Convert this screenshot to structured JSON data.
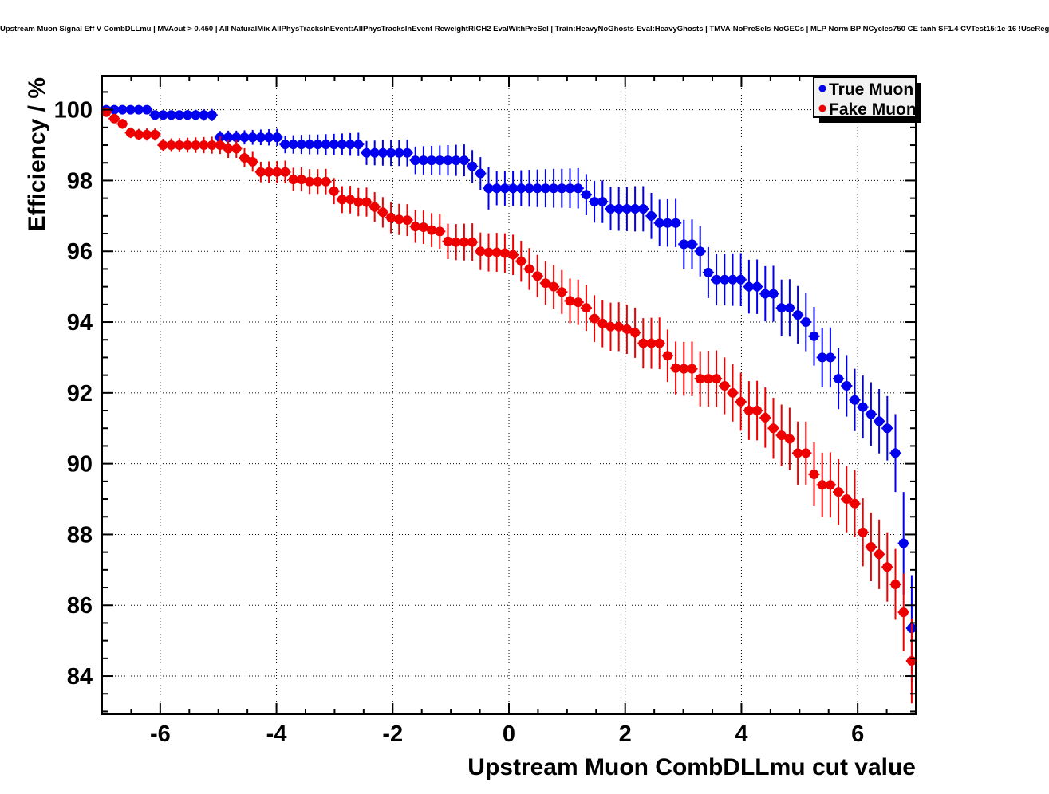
{
  "title": "Upstream Muon Signal Eff V CombDLLmu | MVAout > 0.450 | All NaturalMix AllPhysTracksInEvent:AllPhysTracksInEvent ReweightRICH2 EvalWithPreSel | Train:HeavyNoGhosts-Eval:HeavyGhosts | TMVA-NoPreSels-NoGECs | MLP Norm BP NCycles750 CE tanh SF1.4 CVTest15:1e-16 !UseReg",
  "colors": {
    "true_muon": "#0000ee",
    "fake_muon": "#ee0000",
    "frame": "#000000",
    "grid": "#000000",
    "legend_bg": "#f2f2f2",
    "legend_shadow": "#000000",
    "background": "#ffffff"
  },
  "chart_data": {
    "type": "scatter",
    "title": "Upstream Muon Signal Eff V CombDLLmu | MVAout > 0.450 | All NaturalMix AllPhysTracksInEvent:AllPhysTracksInEvent ReweightRICH2 EvalWithPreSel | Train:HeavyNoGhosts-Eval:HeavyGhosts | TMVA-NoPreSels-NoGECs | MLP Norm BP NCycles750 CE tanh SF1.4 CVTest15:1e-16 !UseReg",
    "xlabel": "Upstream Muon CombDLLmu cut value",
    "ylabel": "Efficiency / %",
    "xlim": [
      -7,
      7
    ],
    "ylim": [
      82.92,
      100.96
    ],
    "x_ticks": [
      -6,
      -4,
      -2,
      0,
      2,
      4,
      6
    ],
    "y_ticks": [
      84,
      86,
      88,
      90,
      92,
      94,
      96,
      98,
      100
    ],
    "minor_tick_step": 0.5,
    "grid": "dotted-at-major-ticks",
    "marker": "filled-circle",
    "xerr_halfwidth": 0.07,
    "legend": {
      "position": "top-right",
      "items": [
        "True Muon",
        "Fake Muon"
      ]
    },
    "x": [
      -6.93,
      -6.79,
      -6.65,
      -6.51,
      -6.37,
      -6.23,
      -6.09,
      -5.95,
      -5.81,
      -5.67,
      -5.53,
      -5.39,
      -5.25,
      -5.11,
      -4.97,
      -4.83,
      -4.69,
      -4.55,
      -4.41,
      -4.27,
      -4.13,
      -3.99,
      -3.85,
      -3.71,
      -3.57,
      -3.43,
      -3.29,
      -3.15,
      -3.01,
      -2.87,
      -2.73,
      -2.59,
      -2.45,
      -2.31,
      -2.17,
      -2.03,
      -1.89,
      -1.75,
      -1.61,
      -1.47,
      -1.33,
      -1.19,
      -1.05,
      -0.91,
      -0.77,
      -0.63,
      -0.49,
      -0.35,
      -0.21,
      -0.07,
      0.07,
      0.21,
      0.35,
      0.49,
      0.63,
      0.77,
      0.91,
      1.05,
      1.19,
      1.33,
      1.47,
      1.61,
      1.75,
      1.89,
      2.03,
      2.17,
      2.31,
      2.45,
      2.59,
      2.73,
      2.87,
      3.01,
      3.15,
      3.29,
      3.43,
      3.57,
      3.71,
      3.85,
      3.99,
      4.13,
      4.27,
      4.41,
      4.55,
      4.69,
      4.83,
      4.97,
      5.11,
      5.25,
      5.39,
      5.53,
      5.67,
      5.81,
      5.95,
      6.09,
      6.23,
      6.37,
      6.51,
      6.65,
      6.79,
      6.93
    ],
    "series": [
      {
        "name": "True Muon",
        "color": "#0000ee",
        "y": [
          100,
          100,
          100,
          100,
          100,
          100,
          99.85,
          99.85,
          99.85,
          99.85,
          99.85,
          99.85,
          99.85,
          99.85,
          99.22,
          99.22,
          99.22,
          99.22,
          99.22,
          99.22,
          99.22,
          99.22,
          99.02,
          99.02,
          99.02,
          99.02,
          99.02,
          99.02,
          99.02,
          99.02,
          99.02,
          99.02,
          98.78,
          98.78,
          98.78,
          98.78,
          98.78,
          98.78,
          98.57,
          98.57,
          98.57,
          98.57,
          98.57,
          98.57,
          98.57,
          98.4,
          98.2,
          97.78,
          97.78,
          97.78,
          97.78,
          97.78,
          97.78,
          97.78,
          97.78,
          97.78,
          97.78,
          97.78,
          97.78,
          97.6,
          97.4,
          97.4,
          97.2,
          97.2,
          97.2,
          97.2,
          97.2,
          97.0,
          96.8,
          96.8,
          96.8,
          96.2,
          96.2,
          96.0,
          95.4,
          95.2,
          95.2,
          95.2,
          95.2,
          95.0,
          95.0,
          94.8,
          94.8,
          94.4,
          94.4,
          94.2,
          94.0,
          93.6,
          93.0,
          93.0,
          92.4,
          92.2,
          91.8,
          91.6,
          91.4,
          91.2,
          91.0,
          90.3,
          87.75,
          85.35
        ],
        "yerr": [
          0.05,
          0.06,
          0.07,
          0.08,
          0.09,
          0.1,
          0.1,
          0.11,
          0.12,
          0.13,
          0.14,
          0.15,
          0.16,
          0.17,
          0.18,
          0.19,
          0.19,
          0.2,
          0.21,
          0.22,
          0.23,
          0.24,
          0.25,
          0.26,
          0.27,
          0.28,
          0.28,
          0.29,
          0.3,
          0.31,
          0.32,
          0.33,
          0.34,
          0.35,
          0.36,
          0.37,
          0.37,
          0.38,
          0.39,
          0.4,
          0.41,
          0.42,
          0.43,
          0.44,
          0.45,
          0.46,
          0.46,
          0.6,
          0.48,
          0.49,
          0.5,
          0.51,
          0.52,
          0.53,
          0.54,
          0.55,
          0.55,
          0.56,
          0.57,
          0.58,
          0.59,
          0.6,
          0.61,
          0.62,
          0.63,
          0.64,
          0.64,
          0.65,
          0.66,
          0.67,
          0.68,
          0.69,
          0.7,
          0.71,
          0.72,
          0.73,
          0.73,
          0.74,
          0.75,
          0.76,
          0.77,
          0.78,
          0.79,
          0.8,
          0.81,
          0.82,
          0.82,
          0.83,
          0.84,
          0.85,
          0.86,
          0.87,
          0.88,
          0.89,
          0.9,
          0.91,
          0.91,
          1.1,
          1.45,
          1.5
        ]
      },
      {
        "name": "Fake Muon",
        "color": "#ee0000",
        "y": [
          99.93,
          99.75,
          99.6,
          99.35,
          99.3,
          99.3,
          99.3,
          99.0,
          99.0,
          99.0,
          99.0,
          99.0,
          99.0,
          99.0,
          99.0,
          98.9,
          98.9,
          98.64,
          98.53,
          98.24,
          98.24,
          98.24,
          98.24,
          98.03,
          98.03,
          97.97,
          97.97,
          97.97,
          97.7,
          97.46,
          97.46,
          97.39,
          97.39,
          97.25,
          97.1,
          96.95,
          96.9,
          96.88,
          96.7,
          96.68,
          96.6,
          96.56,
          96.28,
          96.26,
          96.26,
          96.26,
          96.0,
          95.97,
          95.97,
          95.95,
          95.9,
          95.72,
          95.5,
          95.3,
          95.1,
          95.0,
          94.85,
          94.6,
          94.56,
          94.4,
          94.1,
          93.96,
          93.87,
          93.87,
          93.8,
          93.7,
          93.4,
          93.4,
          93.4,
          93.05,
          92.7,
          92.68,
          92.68,
          92.4,
          92.4,
          92.4,
          92.2,
          92.0,
          91.75,
          91.5,
          91.5,
          91.3,
          91.0,
          90.8,
          90.7,
          90.3,
          90.3,
          89.7,
          89.4,
          89.4,
          89.2,
          89.0,
          88.87,
          88.06,
          87.65,
          87.44,
          87.08,
          86.59,
          85.8,
          84.43
        ],
        "yerr": [
          0.12,
          0.13,
          0.14,
          0.15,
          0.16,
          0.17,
          0.17,
          0.18,
          0.19,
          0.2,
          0.21,
          0.22,
          0.23,
          0.24,
          0.25,
          0.26,
          0.26,
          0.27,
          0.28,
          0.29,
          0.3,
          0.31,
          0.32,
          0.33,
          0.34,
          0.35,
          0.35,
          0.36,
          0.37,
          0.38,
          0.39,
          0.4,
          0.41,
          0.42,
          0.43,
          0.44,
          0.44,
          0.45,
          0.46,
          0.47,
          0.48,
          0.49,
          0.5,
          0.51,
          0.52,
          0.53,
          0.53,
          0.54,
          0.55,
          0.56,
          0.57,
          0.58,
          0.59,
          0.6,
          0.61,
          0.62,
          0.62,
          0.63,
          0.64,
          0.65,
          0.66,
          0.67,
          0.68,
          0.69,
          0.7,
          0.71,
          0.71,
          0.72,
          0.73,
          0.74,
          0.75,
          0.76,
          0.77,
          0.78,
          0.79,
          0.8,
          0.8,
          0.81,
          0.82,
          0.83,
          0.84,
          0.85,
          0.86,
          0.87,
          0.88,
          0.89,
          0.89,
          0.9,
          0.91,
          0.92,
          0.93,
          0.94,
          0.95,
          0.96,
          0.97,
          0.98,
          0.98,
          1.0,
          1.1,
          1.2
        ]
      }
    ]
  }
}
